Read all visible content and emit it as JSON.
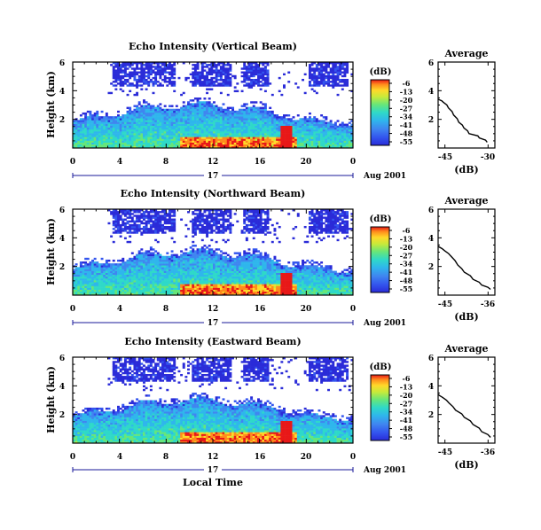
{
  "chart_data": {
    "type": "heatmap",
    "colors": {
      "scale": [
        "#2a2bd8",
        "#3355ee",
        "#3f86f0",
        "#2fb6ec",
        "#2fd9c8",
        "#66e67a",
        "#c8ea3a",
        "#ffd92a",
        "#ff8a1c",
        "#e81818"
      ],
      "profile_line": "#000000",
      "date_axis": "#1a1a99"
    },
    "x_label": "Local Time",
    "x_ticks": [
      "0",
      "4",
      "8",
      "12",
      "16",
      "20",
      "0"
    ],
    "x_range": [
      0,
      24
    ],
    "day_label": "17",
    "date_label": "Aug 2001",
    "y_label": "Height (km)",
    "y_ticks": [
      "2",
      "4",
      "6"
    ],
    "y_range": [
      0,
      6
    ],
    "colorbar_unit": "(dB)",
    "colorbar_ticks": [
      "-6",
      "-13",
      "-20",
      "-27",
      "-34",
      "-41",
      "-48",
      "-55"
    ],
    "profile_title": "Average",
    "profile_xlabel": "(dB)",
    "panels": [
      {
        "title": "Echo Intensity (Vertical Beam)",
        "profile_ticks": [
          "-45",
          "-30"
        ],
        "profile_xrange": [
          -50,
          -28
        ],
        "profile": [
          [
            -31,
            0.4
          ],
          [
            -34,
            0.7
          ],
          [
            -38,
            1.0
          ],
          [
            -40,
            1.4
          ],
          [
            -42,
            1.8
          ],
          [
            -44,
            2.3
          ],
          [
            -46,
            2.8
          ],
          [
            -48,
            3.2
          ],
          [
            -50,
            3.4
          ]
        ]
      },
      {
        "title": "Echo Intensity (Northward Beam)",
        "profile_ticks": [
          "-45",
          "-36"
        ],
        "profile_xrange": [
          -47,
          -34
        ],
        "profile": [
          [
            -35,
            0.4
          ],
          [
            -37,
            0.7
          ],
          [
            -39,
            1.1
          ],
          [
            -41,
            1.6
          ],
          [
            -42.5,
            2.1
          ],
          [
            -44,
            2.7
          ],
          [
            -45.5,
            3.1
          ],
          [
            -47,
            3.4
          ]
        ]
      },
      {
        "title": "Echo Intensity (Eastward Beam)",
        "profile_ticks": [
          "-45",
          "-36"
        ],
        "profile_xrange": [
          -47,
          -34
        ],
        "profile": [
          [
            -35,
            0.4
          ],
          [
            -37,
            0.8
          ],
          [
            -39,
            1.3
          ],
          [
            -41,
            1.8
          ],
          [
            -43,
            2.3
          ],
          [
            -44.5,
            2.8
          ],
          [
            -46,
            3.2
          ],
          [
            -47,
            3.4
          ]
        ]
      }
    ]
  }
}
